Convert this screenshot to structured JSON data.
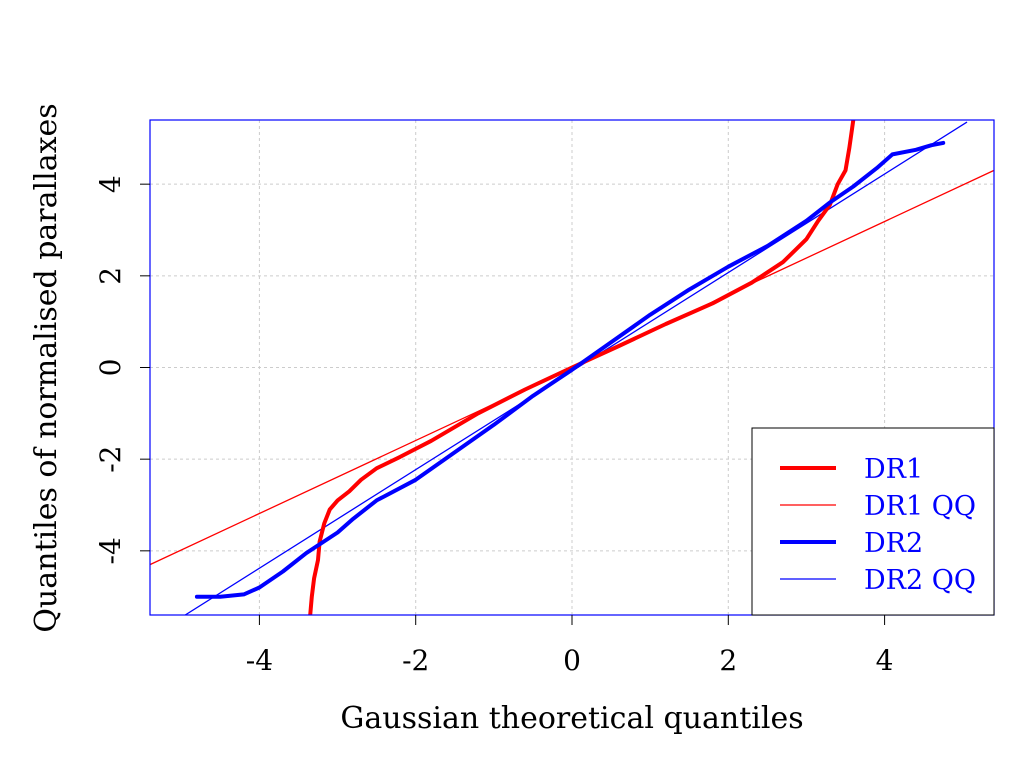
{
  "chart_data": {
    "type": "line",
    "title": "",
    "xlabel": "Gaussian theoretical quantiles",
    "ylabel": "Quantiles of normalised parallaxes",
    "xlim": [
      -5.4,
      5.4
    ],
    "ylim": [
      -5.4,
      5.4
    ],
    "xticks": [
      -4,
      -2,
      0,
      2,
      4
    ],
    "yticks": [
      -4,
      -2,
      0,
      2,
      4
    ],
    "xtick_labels": [
      "-4",
      "-2",
      "0",
      "2",
      "4"
    ],
    "ytick_labels": [
      "-4",
      "-2",
      "0",
      "2",
      "4"
    ],
    "grid": true,
    "legend_position": "bottom-right",
    "series": [
      {
        "name": "DR1",
        "kind": "curve",
        "color": "#ff0000",
        "width": "thick",
        "points": [
          [
            -3.35,
            -5.4
          ],
          [
            -3.33,
            -5.0
          ],
          [
            -3.3,
            -4.6
          ],
          [
            -3.25,
            -4.2
          ],
          [
            -3.23,
            -3.8
          ],
          [
            -3.17,
            -3.4
          ],
          [
            -3.1,
            -3.1
          ],
          [
            -3.0,
            -2.9
          ],
          [
            -2.85,
            -2.7
          ],
          [
            -2.7,
            -2.45
          ],
          [
            -2.5,
            -2.2
          ],
          [
            -2.2,
            -1.95
          ],
          [
            -1.8,
            -1.6
          ],
          [
            -1.2,
            -1.0
          ],
          [
            -0.6,
            -0.48
          ],
          [
            0.0,
            0.0
          ],
          [
            0.6,
            0.47
          ],
          [
            1.2,
            0.95
          ],
          [
            1.8,
            1.4
          ],
          [
            2.3,
            1.85
          ],
          [
            2.7,
            2.3
          ],
          [
            3.0,
            2.8
          ],
          [
            3.15,
            3.2
          ],
          [
            3.3,
            3.55
          ],
          [
            3.4,
            4.0
          ],
          [
            3.5,
            4.3
          ],
          [
            3.55,
            4.8
          ],
          [
            3.6,
            5.4
          ]
        ]
      },
      {
        "name": "DR1 QQ",
        "kind": "line",
        "color": "#ff0000",
        "width": "thin",
        "points": [
          [
            -5.4,
            -4.3
          ],
          [
            5.4,
            4.3
          ]
        ]
      },
      {
        "name": "DR2",
        "kind": "curve",
        "color": "#0000ff",
        "width": "thick",
        "points": [
          [
            -4.8,
            -5.0
          ],
          [
            -4.5,
            -5.0
          ],
          [
            -4.2,
            -4.95
          ],
          [
            -4.0,
            -4.8
          ],
          [
            -3.7,
            -4.45
          ],
          [
            -3.4,
            -4.05
          ],
          [
            -3.0,
            -3.6
          ],
          [
            -2.8,
            -3.3
          ],
          [
            -2.5,
            -2.9
          ],
          [
            -2.0,
            -2.45
          ],
          [
            -1.5,
            -1.85
          ],
          [
            -1.0,
            -1.25
          ],
          [
            -0.5,
            -0.62
          ],
          [
            0.0,
            -0.05
          ],
          [
            0.5,
            0.55
          ],
          [
            1.0,
            1.15
          ],
          [
            1.5,
            1.7
          ],
          [
            2.0,
            2.2
          ],
          [
            2.5,
            2.65
          ],
          [
            3.0,
            3.2
          ],
          [
            3.3,
            3.6
          ],
          [
            3.6,
            3.95
          ],
          [
            3.9,
            4.35
          ],
          [
            4.1,
            4.65
          ],
          [
            4.4,
            4.75
          ],
          [
            4.6,
            4.85
          ],
          [
            4.75,
            4.9
          ]
        ]
      },
      {
        "name": "DR2 QQ",
        "kind": "line",
        "color": "#0000ff",
        "width": "thin",
        "points": [
          [
            -4.95,
            -5.4
          ],
          [
            5.05,
            5.35
          ]
        ]
      }
    ],
    "legend": [
      "DR1",
      "DR1 QQ",
      "DR2",
      "DR2 QQ"
    ]
  }
}
